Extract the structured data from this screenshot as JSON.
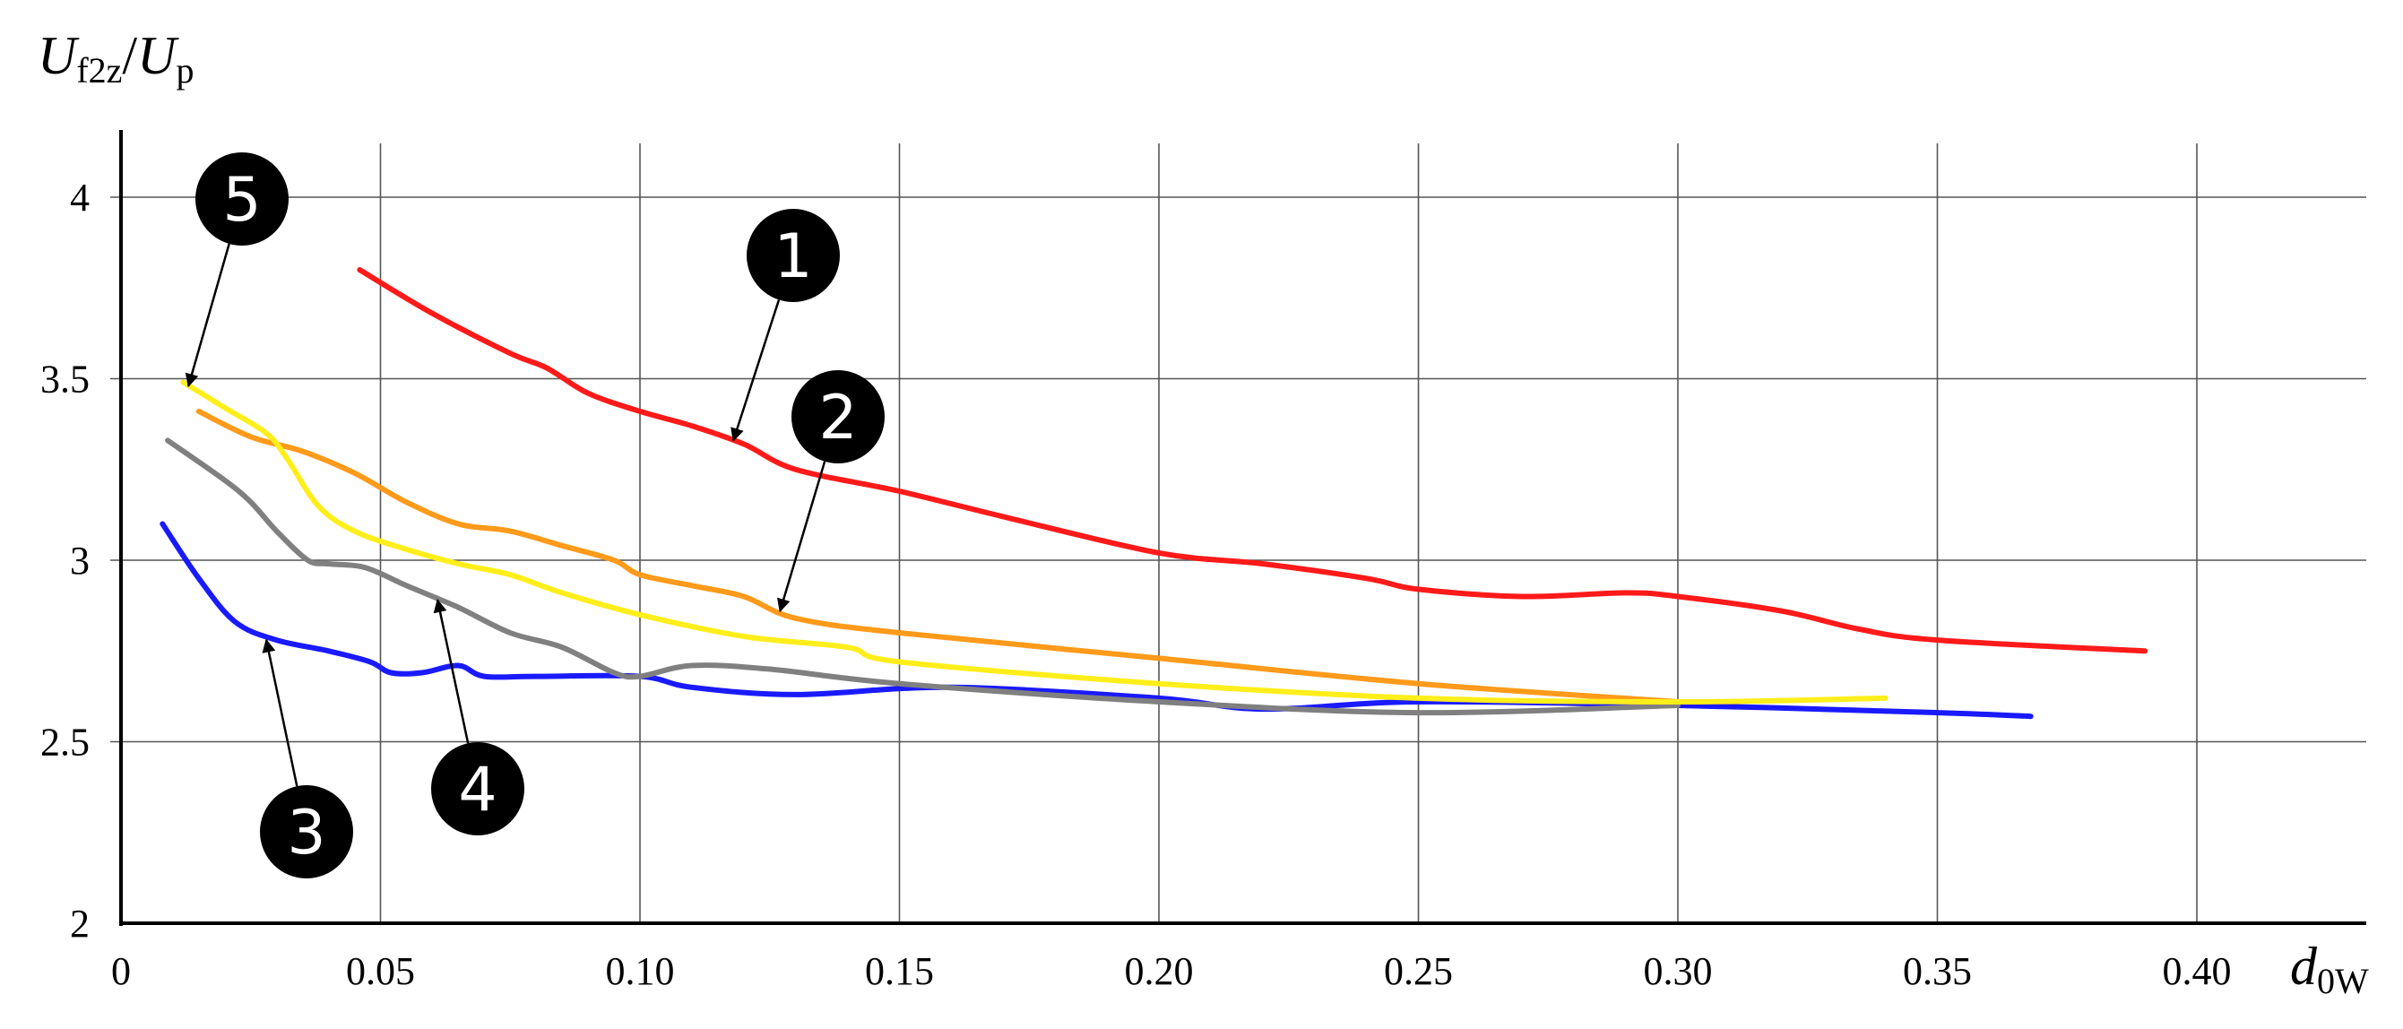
{
  "chart_data": {
    "type": "line",
    "ylabel": {
      "main": "U",
      "sub": "f2z",
      "sep": "/",
      "main2": "U",
      "sub2": "p"
    },
    "xlabel": {
      "main": "d",
      "sub": "0W"
    },
    "xlim": [
      0,
      0.44
    ],
    "ylim": [
      2,
      4.2
    ],
    "x_ticks": [
      {
        "value": 0,
        "label": "0"
      },
      {
        "value": 0.05,
        "label": "0.05"
      },
      {
        "value": 0.1,
        "label": "0.10"
      },
      {
        "value": 0.15,
        "label": "0.15"
      },
      {
        "value": 0.2,
        "label": "0.20"
      },
      {
        "value": 0.25,
        "label": "0.25"
      },
      {
        "value": 0.3,
        "label": "0.30"
      },
      {
        "value": 0.35,
        "label": "0.35"
      },
      {
        "value": 0.4,
        "label": "0.40"
      }
    ],
    "y_ticks": [
      {
        "value": 2,
        "label": "2"
      },
      {
        "value": 2.5,
        "label": "2.5"
      },
      {
        "value": 3,
        "label": "3"
      },
      {
        "value": 3.5,
        "label": "3.5"
      },
      {
        "value": 4,
        "label": "4"
      }
    ],
    "grid": true,
    "series": [
      {
        "color": "#ff1a1a",
        "x": [
          0.046,
          0.06,
          0.075,
          0.082,
          0.09,
          0.1,
          0.11,
          0.12,
          0.13,
          0.15,
          0.17,
          0.2,
          0.22,
          0.24,
          0.25,
          0.27,
          0.29,
          0.3,
          0.32,
          0.335,
          0.35,
          0.39
        ],
        "y": [
          3.8,
          3.68,
          3.57,
          3.53,
          3.46,
          3.41,
          3.37,
          3.32,
          3.25,
          3.19,
          3.12,
          3.02,
          2.99,
          2.95,
          2.92,
          2.9,
          2.91,
          2.9,
          2.86,
          2.81,
          2.78,
          2.75
        ]
      },
      {
        "color": "#ff9a1a",
        "x": [
          0.015,
          0.025,
          0.035,
          0.045,
          0.055,
          0.065,
          0.075,
          0.085,
          0.095,
          0.1,
          0.11,
          0.12,
          0.13,
          0.15,
          0.2,
          0.25,
          0.3
        ],
        "y": [
          3.41,
          3.34,
          3.3,
          3.24,
          3.16,
          3.1,
          3.08,
          3.04,
          3.0,
          2.96,
          2.93,
          2.9,
          2.84,
          2.8,
          2.73,
          2.66,
          2.61
        ]
      },
      {
        "color": "#1a1aff",
        "x": [
          0.008,
          0.015,
          0.022,
          0.03,
          0.04,
          0.048,
          0.052,
          0.058,
          0.065,
          0.07,
          0.08,
          0.1,
          0.11,
          0.13,
          0.16,
          0.2,
          0.22,
          0.25,
          0.3,
          0.35,
          0.368
        ],
        "y": [
          3.1,
          2.95,
          2.83,
          2.78,
          2.75,
          2.72,
          2.69,
          2.69,
          2.71,
          2.68,
          2.68,
          2.68,
          2.65,
          2.63,
          2.65,
          2.62,
          2.59,
          2.61,
          2.6,
          2.58,
          2.57
        ]
      },
      {
        "color": "#808080",
        "x": [
          0.009,
          0.02,
          0.025,
          0.03,
          0.036,
          0.04,
          0.047,
          0.055,
          0.065,
          0.075,
          0.085,
          0.095,
          0.1,
          0.11,
          0.125,
          0.15,
          0.2,
          0.25,
          0.3
        ],
        "y": [
          3.33,
          3.22,
          3.16,
          3.08,
          3.0,
          2.99,
          2.98,
          2.93,
          2.87,
          2.8,
          2.76,
          2.69,
          2.68,
          2.71,
          2.7,
          2.66,
          2.61,
          2.58,
          2.6
        ]
      },
      {
        "color": "#ffee1a",
        "x": [
          0.012,
          0.02,
          0.028,
          0.032,
          0.038,
          0.045,
          0.055,
          0.065,
          0.075,
          0.085,
          0.1,
          0.12,
          0.14,
          0.15,
          0.2,
          0.25,
          0.3,
          0.34
        ],
        "y": [
          3.49,
          3.42,
          3.35,
          3.28,
          3.15,
          3.08,
          3.03,
          2.99,
          2.96,
          2.91,
          2.85,
          2.79,
          2.76,
          2.72,
          2.66,
          2.62,
          2.61,
          2.62
        ]
      }
    ],
    "markers": [
      {
        "label": "1",
        "tip": [
          0.118,
          3.33
        ]
      },
      {
        "label": "2",
        "tip": [
          0.127,
          2.86
        ]
      },
      {
        "label": "3",
        "tip": [
          0.028,
          2.78
        ]
      },
      {
        "label": "4",
        "tip": [
          0.061,
          2.89
        ]
      },
      {
        "label": "5",
        "tip": [
          0.013,
          3.48
        ]
      }
    ]
  }
}
